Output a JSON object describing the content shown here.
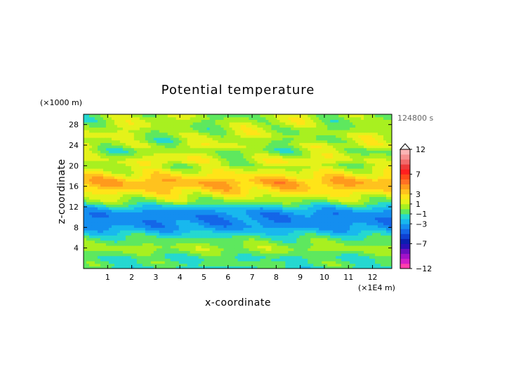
{
  "chart_data": {
    "type": "heatmap",
    "title": "Potential temperature",
    "xlabel": "x-coordinate",
    "ylabel": "z-coordinate",
    "x_unit_label": "(×1E4 m)",
    "y_unit_label": "(×1000 m)",
    "time_label": "124800 s",
    "xlim": [
      0,
      12.8
    ],
    "ylim": [
      0,
      30
    ],
    "x_ticks": [
      {
        "value": 1,
        "label": "1"
      },
      {
        "value": 2,
        "label": "2"
      },
      {
        "value": 3,
        "label": "3"
      },
      {
        "value": 4,
        "label": "4"
      },
      {
        "value": 5,
        "label": "5"
      },
      {
        "value": 6,
        "label": "6"
      },
      {
        "value": 7,
        "label": "7"
      },
      {
        "value": 8,
        "label": "8"
      },
      {
        "value": 9,
        "label": "9"
      },
      {
        "value": 10,
        "label": "10"
      },
      {
        "value": 11,
        "label": "11"
      },
      {
        "value": 12,
        "label": "12"
      }
    ],
    "y_ticks": [
      {
        "value": 4,
        "label": "4"
      },
      {
        "value": 8,
        "label": "8"
      },
      {
        "value": 12,
        "label": "12"
      },
      {
        "value": 16,
        "label": "16"
      },
      {
        "value": 20,
        "label": "20"
      },
      {
        "value": 24,
        "label": "24"
      },
      {
        "value": 28,
        "label": "28"
      }
    ],
    "colorbar": {
      "levels": [
        -12,
        -11,
        -10,
        -9,
        -8,
        -7,
        -6,
        -5,
        -4,
        -3,
        -2,
        -1,
        0,
        1,
        2,
        3,
        4,
        5,
        6,
        7,
        8,
        9,
        10,
        11,
        12
      ],
      "colors": [
        "#ff3fae",
        "#d21fc8",
        "#a312c9",
        "#6a0fbf",
        "#2a10b8",
        "#0a1fb0",
        "#0f40d2",
        "#1466e8",
        "#148ef0",
        "#18b8ee",
        "#25d8d0",
        "#5ee85e",
        "#a8f020",
        "#e4f21a",
        "#ffe418",
        "#ffc21e",
        "#ff9a1c",
        "#ff7024",
        "#ff4a1a",
        "#ff1f1f",
        "#ee3a3a",
        "#f26a6a",
        "#f79090",
        "#fbb4b4"
      ],
      "labels": [
        {
          "value": 12,
          "label": "12"
        },
        {
          "value": 7,
          "label": "7"
        },
        {
          "value": 3,
          "label": "3"
        },
        {
          "value": 1,
          "label": "1"
        },
        {
          "value": -1,
          "label": "−1"
        },
        {
          "value": -3,
          "label": "−3"
        },
        {
          "value": -7,
          "label": "−7"
        },
        {
          "value": -12,
          "label": "−12"
        }
      ]
    },
    "z_profile": [
      {
        "z": 0,
        "value": -1.5
      },
      {
        "z": 1,
        "value": -0.5
      },
      {
        "z": 2,
        "value": -1.2
      },
      {
        "z": 3,
        "value": -0.3
      },
      {
        "z": 4,
        "value": 0.5
      },
      {
        "z": 5,
        "value": -0.2
      },
      {
        "z": 6,
        "value": -0.8
      },
      {
        "z": 7,
        "value": -2.0
      },
      {
        "z": 8,
        "value": -3.2
      },
      {
        "z": 9,
        "value": -3.6
      },
      {
        "z": 10,
        "value": -3.7
      },
      {
        "z": 11,
        "value": -3.4
      },
      {
        "z": 12,
        "value": -2.0
      },
      {
        "z": 13,
        "value": 0.0
      },
      {
        "z": 14,
        "value": 1.2
      },
      {
        "z": 15,
        "value": 2.5
      },
      {
        "z": 16,
        "value": 3.5
      },
      {
        "z": 17,
        "value": 4.0
      },
      {
        "z": 18,
        "value": 2.5
      },
      {
        "z": 19,
        "value": 1.5
      },
      {
        "z": 20,
        "value": 0.5
      },
      {
        "z": 21,
        "value": 1.5
      },
      {
        "z": 22,
        "value": 0.8
      },
      {
        "z": 23,
        "value": 0.0
      },
      {
        "z": 24,
        "value": 1.0
      },
      {
        "z": 25,
        "value": 0.3
      },
      {
        "z": 26,
        "value": 0.8
      },
      {
        "z": 27,
        "value": 0.4
      },
      {
        "z": 28,
        "value": 0.7
      },
      {
        "z": 29,
        "value": 0.5
      },
      {
        "z": 30,
        "value": 0.5
      }
    ],
    "grid": false
  }
}
